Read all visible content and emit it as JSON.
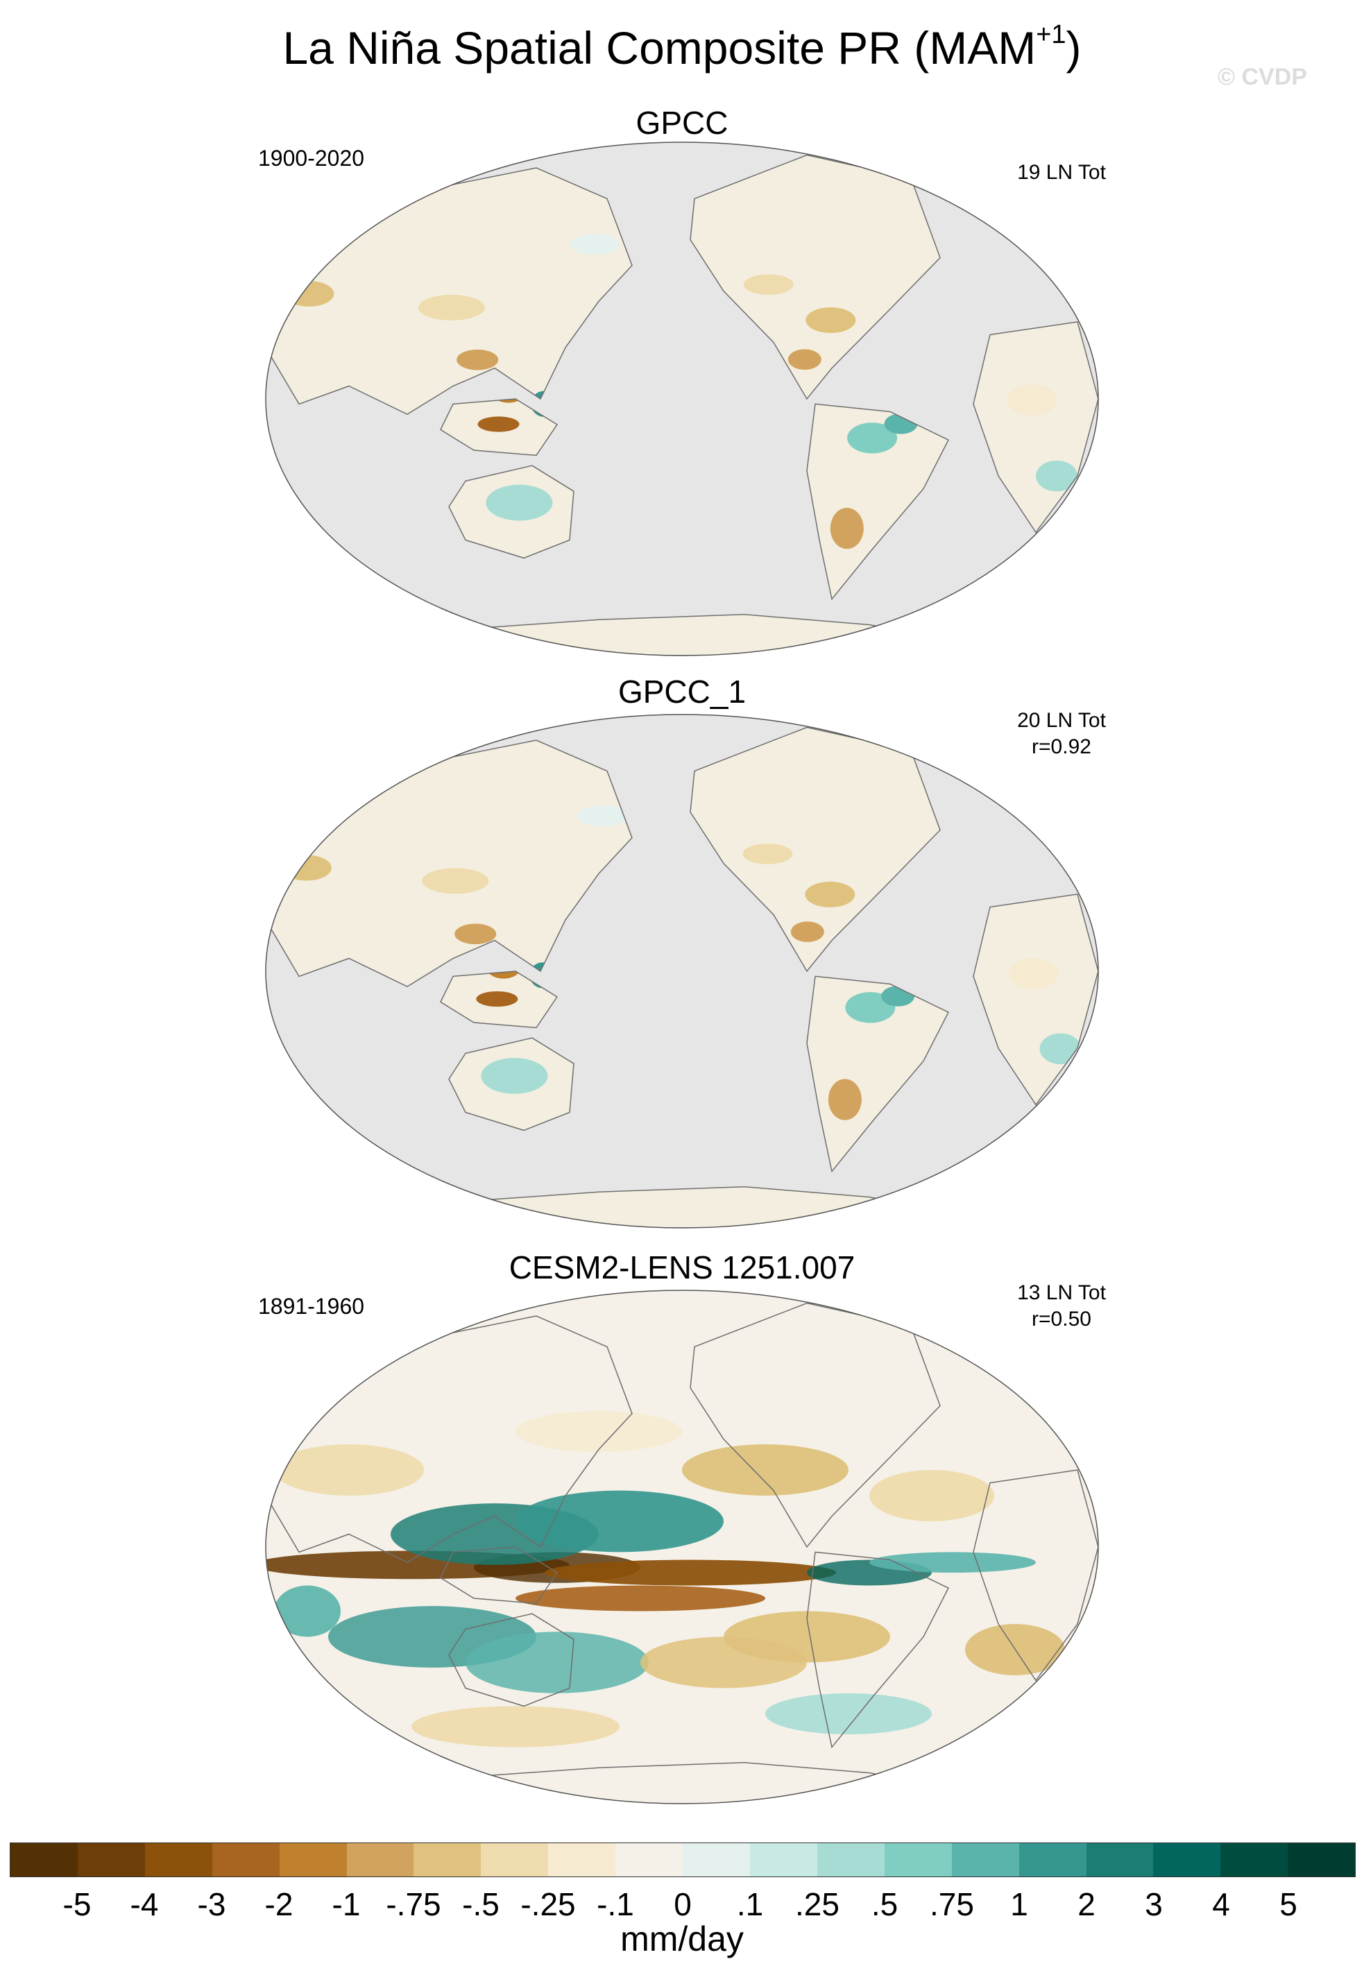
{
  "figure": {
    "title": "La Niña Spatial Composite PR (MAM",
    "title_sup": "+1",
    "title_end": ")",
    "watermark": "© CVDP"
  },
  "panels": [
    {
      "title": "GPCC",
      "period": "1900-2020",
      "count": "19 LN Tot",
      "corr": "",
      "ocean_filled": false
    },
    {
      "title": "GPCC_1",
      "period": "",
      "count": "20 LN Tot",
      "corr": "r=0.92",
      "ocean_filled": false
    },
    {
      "title": "CESM2-LENS 1251.007",
      "period": "1891-1960",
      "count": "13 LN Tot",
      "corr": "r=0.50",
      "ocean_filled": true
    }
  ],
  "colorbar": {
    "units": "mm/day",
    "labels": [
      "-5",
      "-4",
      "-3",
      "-2",
      "-1",
      "-.75",
      "-.5",
      "-.25",
      "-.1",
      "0",
      ".1",
      ".25",
      ".5",
      ".75",
      "1",
      "2",
      "3",
      "4",
      "5"
    ],
    "colors": [
      "#543005",
      "#6e3e0a",
      "#8c510a",
      "#a86520",
      "#bf812d",
      "#d2a35e",
      "#dfc27d",
      "#eedcae",
      "#f6ead0",
      "#f5f1e8",
      "#e4f1ee",
      "#c7eae5",
      "#a6dcd3",
      "#80cdc1",
      "#5ab4ac",
      "#35978f",
      "#1b7d73",
      "#01665e",
      "#004d40",
      "#003c30"
    ]
  },
  "map_colors": {
    "ocean_masked": "#e6e6e6",
    "coast": "#6e6e6e",
    "land_neutral": "#f3eedf"
  }
}
